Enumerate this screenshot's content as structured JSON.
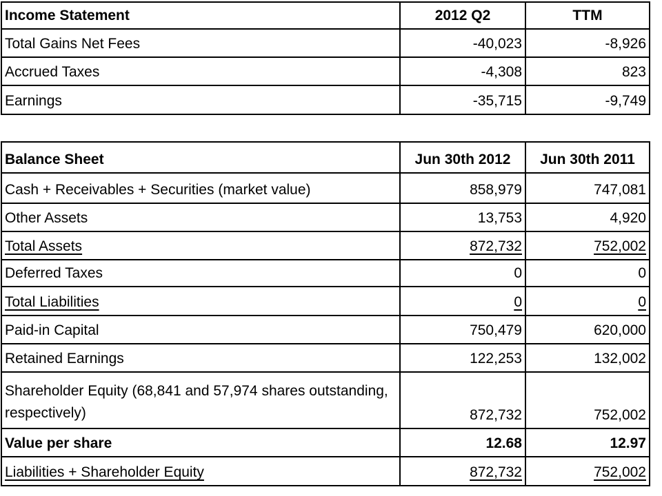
{
  "colors": {
    "background": "#ffffff",
    "text": "#000000",
    "border": "#000000"
  },
  "income_statement": {
    "title": "Income Statement",
    "columns": [
      "2012 Q2",
      "TTM"
    ],
    "rows": [
      {
        "label": "Total Gains Net Fees",
        "values": [
          "-40,023",
          "-8,926"
        ]
      },
      {
        "label": "Accrued Taxes",
        "values": [
          "-4,308",
          "823"
        ]
      },
      {
        "label": "Earnings",
        "values": [
          "-35,715",
          "-9,749"
        ]
      }
    ]
  },
  "balance_sheet": {
    "title": "Balance Sheet",
    "columns": [
      "Jun 30th 2012",
      "Jun 30th 2011"
    ],
    "rows": [
      {
        "label": "Cash + Receivables + Securities (market value)",
        "values": [
          "858,979",
          "747,081"
        ]
      },
      {
        "label": "Other Assets",
        "values": [
          "13,753",
          "4,920"
        ]
      },
      {
        "label": "Total Assets",
        "values": [
          "872,732",
          "752,002"
        ]
      },
      {
        "label": "Deferred Taxes",
        "values": [
          "0",
          "0"
        ]
      },
      {
        "label": "Total Liabilities",
        "values": [
          "0",
          "0"
        ]
      },
      {
        "label": "Paid-in Capital",
        "values": [
          "750,479",
          "620,000"
        ]
      },
      {
        "label": "Retained Earnings",
        "values": [
          "122,253",
          "132,002"
        ]
      },
      {
        "label": "Shareholder Equity (68,841 and 57,974 shares outstanding, respectively)",
        "values": [
          "872,732",
          "752,002"
        ]
      },
      {
        "label": "Value per share",
        "values": [
          "12.68",
          "12.97"
        ]
      },
      {
        "label": "Liabilities + Shareholder Equity",
        "values": [
          "872,732",
          "752,002"
        ]
      }
    ]
  }
}
